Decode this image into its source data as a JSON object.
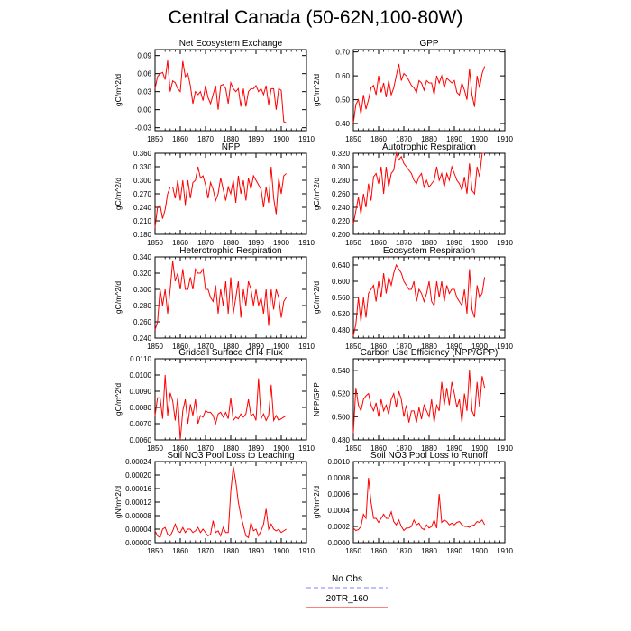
{
  "title": "Central Canada (50-62N,100-80W)",
  "x_ticks": [
    1850,
    1860,
    1870,
    1880,
    1890,
    1900,
    1910
  ],
  "x_range": [
    1850,
    1910
  ],
  "colors": {
    "model": "#ff0000",
    "obs": "#8080ff",
    "axis": "#000000"
  },
  "legend": [
    {
      "label": "No Obs",
      "style": "dashed",
      "color": "#8080ff"
    },
    {
      "label": "20TR_160",
      "style": "solid",
      "color": "#ff0000"
    }
  ],
  "chart_data": [
    {
      "type": "line",
      "title": "Net Ecosystem Exchange",
      "ylabel": "gC/m^2/d",
      "xlim": [
        1850,
        1910
      ],
      "ylim": [
        -0.035,
        0.1
      ],
      "yticks": [
        -0.03,
        0.0,
        0.03,
        0.06,
        0.09
      ],
      "ytick_labels": [
        "-0.03",
        "0.00",
        "0.03",
        "0.06",
        "0.09"
      ],
      "x_start": 1850,
      "series": [
        {
          "name": "20TR_160",
          "values": [
            0.035,
            0.055,
            0.06,
            0.062,
            0.05,
            0.082,
            0.03,
            0.048,
            0.045,
            0.035,
            0.03,
            0.081,
            0.055,
            0.06,
            0.04,
            0.01,
            0.03,
            0.025,
            0.03,
            0.015,
            0.04,
            0.02,
            0.01,
            0.025,
            0.04,
            0.0,
            0.04,
            0.042,
            0.035,
            0.01,
            0.045,
            0.035,
            0.03,
            0.035,
            0.005,
            0.035,
            0.005,
            0.03,
            0.035,
            0.035,
            0.04,
            0.03,
            0.035,
            0.025,
            0.04,
            0.008,
            0.035,
            0.035,
            0.0,
            0.035,
            0.032,
            -0.02,
            -0.022
          ]
        }
      ]
    },
    {
      "type": "line",
      "title": "GPP",
      "ylabel": "gC/m^2/d",
      "xlim": [
        1850,
        1910
      ],
      "ylim": [
        0.37,
        0.71
      ],
      "yticks": [
        0.4,
        0.5,
        0.6,
        0.7
      ],
      "ytick_labels": [
        "0.40",
        "0.50",
        "0.60",
        "0.70"
      ],
      "x_start": 1850,
      "series": [
        {
          "name": "20TR_160",
          "values": [
            0.4,
            0.48,
            0.5,
            0.44,
            0.52,
            0.46,
            0.5,
            0.55,
            0.56,
            0.52,
            0.6,
            0.53,
            0.57,
            0.51,
            0.58,
            0.52,
            0.55,
            0.6,
            0.65,
            0.58,
            0.61,
            0.6,
            0.58,
            0.56,
            0.55,
            0.53,
            0.58,
            0.57,
            0.54,
            0.58,
            0.57,
            0.57,
            0.52,
            0.6,
            0.57,
            0.6,
            0.55,
            0.59,
            0.58,
            0.57,
            0.58,
            0.53,
            0.52,
            0.57,
            0.54,
            0.5,
            0.63,
            0.52,
            0.47,
            0.6,
            0.55,
            0.61,
            0.64
          ]
        }
      ]
    },
    {
      "type": "line",
      "title": "NPP",
      "ylabel": "gC/m^2/d",
      "xlim": [
        1850,
        1910
      ],
      "ylim": [
        0.18,
        0.36
      ],
      "yticks": [
        0.18,
        0.21,
        0.24,
        0.27,
        0.3,
        0.33,
        0.36
      ],
      "ytick_labels": [
        "0.180",
        "0.210",
        "0.240",
        "0.270",
        "0.300",
        "0.330",
        "0.360"
      ],
      "x_start": 1850,
      "series": [
        {
          "name": "20TR_160",
          "values": [
            0.195,
            0.24,
            0.245,
            0.215,
            0.235,
            0.27,
            0.285,
            0.285,
            0.26,
            0.3,
            0.255,
            0.3,
            0.245,
            0.3,
            0.26,
            0.295,
            0.3,
            0.33,
            0.305,
            0.31,
            0.29,
            0.26,
            0.295,
            0.28,
            0.255,
            0.27,
            0.305,
            0.28,
            0.255,
            0.285,
            0.27,
            0.3,
            0.25,
            0.31,
            0.27,
            0.3,
            0.255,
            0.305,
            0.28,
            0.31,
            0.3,
            0.29,
            0.28,
            0.24,
            0.285,
            0.25,
            0.33,
            0.26,
            0.225,
            0.305,
            0.27,
            0.31,
            0.315
          ]
        }
      ]
    },
    {
      "type": "line",
      "title": "Autotrophic Respiration",
      "ylabel": "gC/m^2/d",
      "xlim": [
        1850,
        1910
      ],
      "ylim": [
        0.2,
        0.32
      ],
      "yticks": [
        0.2,
        0.22,
        0.24,
        0.26,
        0.28,
        0.3,
        0.32
      ],
      "ytick_labels": [
        "0.200",
        "0.220",
        "0.240",
        "0.260",
        "0.280",
        "0.300",
        "0.320"
      ],
      "x_start": 1850,
      "series": [
        {
          "name": "20TR_160",
          "values": [
            0.215,
            0.235,
            0.255,
            0.23,
            0.26,
            0.24,
            0.275,
            0.25,
            0.285,
            0.29,
            0.275,
            0.3,
            0.26,
            0.3,
            0.27,
            0.29,
            0.295,
            0.32,
            0.31,
            0.315,
            0.305,
            0.3,
            0.295,
            0.29,
            0.28,
            0.275,
            0.285,
            0.29,
            0.27,
            0.28,
            0.27,
            0.275,
            0.28,
            0.3,
            0.28,
            0.29,
            0.27,
            0.29,
            0.28,
            0.3,
            0.29,
            0.28,
            0.275,
            0.265,
            0.285,
            0.26,
            0.305,
            0.265,
            0.26,
            0.3,
            0.285,
            0.32,
            0.32
          ]
        }
      ]
    },
    {
      "type": "line",
      "title": "Heterotrophic Respiration",
      "ylabel": "gC/m^2/d",
      "xlim": [
        1850,
        1910
      ],
      "ylim": [
        0.24,
        0.34
      ],
      "yticks": [
        0.24,
        0.26,
        0.28,
        0.3,
        0.32,
        0.34
      ],
      "ytick_labels": [
        "0.240",
        "0.260",
        "0.280",
        "0.300",
        "0.320",
        "0.340"
      ],
      "x_start": 1850,
      "series": [
        {
          "name": "20TR_160",
          "values": [
            0.25,
            0.26,
            0.3,
            0.28,
            0.3,
            0.27,
            0.3,
            0.335,
            0.31,
            0.32,
            0.3,
            0.325,
            0.3,
            0.3,
            0.315,
            0.3,
            0.325,
            0.32,
            0.32,
            0.325,
            0.3,
            0.3,
            0.29,
            0.285,
            0.305,
            0.27,
            0.3,
            0.28,
            0.31,
            0.27,
            0.315,
            0.27,
            0.29,
            0.31,
            0.265,
            0.3,
            0.28,
            0.31,
            0.3,
            0.28,
            0.3,
            0.28,
            0.29,
            0.27,
            0.3,
            0.255,
            0.3,
            0.275,
            0.3,
            0.29,
            0.265,
            0.285,
            0.29
          ]
        }
      ]
    },
    {
      "type": "line",
      "title": "Ecosystem Respiration",
      "ylabel": "gC/m^2/d",
      "xlim": [
        1850,
        1910
      ],
      "ylim": [
        0.46,
        0.66
      ],
      "yticks": [
        0.48,
        0.52,
        0.56,
        0.6,
        0.64
      ],
      "ytick_labels": [
        "0.480",
        "0.520",
        "0.560",
        "0.600",
        "0.640"
      ],
      "x_start": 1850,
      "series": [
        {
          "name": "20TR_160",
          "values": [
            0.465,
            0.495,
            0.56,
            0.5,
            0.56,
            0.51,
            0.57,
            0.58,
            0.59,
            0.55,
            0.6,
            0.56,
            0.62,
            0.57,
            0.61,
            0.59,
            0.62,
            0.64,
            0.63,
            0.62,
            0.6,
            0.59,
            0.58,
            0.58,
            0.6,
            0.55,
            0.58,
            0.57,
            0.55,
            0.57,
            0.6,
            0.55,
            0.54,
            0.6,
            0.56,
            0.6,
            0.55,
            0.59,
            0.57,
            0.58,
            0.58,
            0.56,
            0.55,
            0.54,
            0.58,
            0.52,
            0.63,
            0.53,
            0.51,
            0.59,
            0.56,
            0.57,
            0.61
          ]
        }
      ]
    },
    {
      "type": "line",
      "title": "Gridcell Surface CH4 Flux",
      "ylabel": "gC/m^2/d",
      "xlim": [
        1850,
        1910
      ],
      "ylim": [
        0.006,
        0.011
      ],
      "yticks": [
        0.006,
        0.007,
        0.008,
        0.009,
        0.01,
        0.011
      ],
      "ytick_labels": [
        "0.0060",
        "0.0070",
        "0.0080",
        "0.0090",
        "0.0100",
        "0.0110"
      ],
      "x_start": 1850,
      "series": [
        {
          "name": "20TR_160",
          "values": [
            0.0075,
            0.0086,
            0.0086,
            0.0073,
            0.01,
            0.0075,
            0.0089,
            0.0084,
            0.0072,
            0.0086,
            0.006,
            0.0078,
            0.0085,
            0.007,
            0.0082,
            0.0075,
            0.0085,
            0.007,
            0.0075,
            0.0074,
            0.0078,
            0.0077,
            0.0077,
            0.0075,
            0.007,
            0.0076,
            0.0077,
            0.0074,
            0.0077,
            0.0073,
            0.0086,
            0.0072,
            0.0074,
            0.0073,
            0.0076,
            0.0074,
            0.0076,
            0.0085,
            0.0075,
            0.0076,
            0.0072,
            0.0098,
            0.0073,
            0.0076,
            0.0072,
            0.0075,
            0.0094,
            0.0072,
            0.0075,
            0.0072,
            0.0073,
            0.0074,
            0.0075
          ]
        }
      ]
    },
    {
      "type": "line",
      "title": "Carbon Use Efficiency (NPP/GPP)",
      "ylabel": "NPP/GPP",
      "xlim": [
        1850,
        1910
      ],
      "ylim": [
        0.48,
        0.55
      ],
      "yticks": [
        0.48,
        0.5,
        0.52,
        0.54
      ],
      "ytick_labels": [
        "0.480",
        "0.500",
        "0.520",
        "0.540"
      ],
      "x_start": 1850,
      "series": [
        {
          "name": "20TR_160",
          "values": [
            0.486,
            0.525,
            0.51,
            0.505,
            0.515,
            0.518,
            0.52,
            0.51,
            0.505,
            0.512,
            0.5,
            0.515,
            0.505,
            0.51,
            0.502,
            0.515,
            0.52,
            0.508,
            0.522,
            0.515,
            0.5,
            0.51,
            0.495,
            0.505,
            0.505,
            0.495,
            0.508,
            0.498,
            0.51,
            0.505,
            0.5,
            0.515,
            0.495,
            0.51,
            0.505,
            0.53,
            0.51,
            0.525,
            0.51,
            0.53,
            0.52,
            0.508,
            0.515,
            0.495,
            0.52,
            0.505,
            0.54,
            0.505,
            0.5,
            0.53,
            0.508,
            0.535,
            0.525
          ]
        }
      ]
    },
    {
      "type": "line",
      "title": "Soil NO3 Pool Loss to Leaching",
      "ylabel": "gN/m^2/d",
      "xlim": [
        1850,
        1910
      ],
      "ylim": [
        0.0,
        0.00024
      ],
      "yticks": [
        0.0,
        4e-05,
        8e-05,
        0.00012,
        0.00016,
        0.0002,
        0.00024
      ],
      "ytick_labels": [
        "0.00000",
        "0.00004",
        "0.00008",
        "0.00012",
        "0.00016",
        "0.00020",
        "0.00024"
      ],
      "x_start": 1850,
      "series": [
        {
          "name": "20TR_160",
          "values": [
            3.5e-05,
            2e-05,
            1.5e-05,
            4e-05,
            4.5e-05,
            2.5e-05,
            2e-05,
            3.5e-05,
            5.5e-05,
            3.5e-05,
            3e-05,
            4.5e-05,
            3e-05,
            4e-05,
            4e-05,
            3e-05,
            3.5e-05,
            4.5e-05,
            3e-05,
            4e-05,
            3e-05,
            2e-05,
            2.5e-05,
            6.5e-05,
            3e-05,
            3.5e-05,
            2e-05,
            4.5e-05,
            3e-05,
            3e-05,
            0.00015,
            0.000225,
            0.00018,
            0.00012,
            8e-05,
            5e-05,
            2e-05,
            1.5e-05,
            6e-05,
            3.5e-05,
            4e-05,
            2e-05,
            3.5e-05,
            5.5e-05,
            0.0001,
            4e-05,
            5.5e-05,
            4e-05,
            3.5e-05,
            4e-05,
            3e-05,
            3.5e-05,
            4e-05
          ]
        }
      ]
    },
    {
      "type": "line",
      "title": "Soil NO3 Pool Loss to Runoff",
      "ylabel": "gN/m^2/d",
      "xlim": [
        1850,
        1910
      ],
      "ylim": [
        0.0,
        0.001
      ],
      "yticks": [
        0.0,
        0.0002,
        0.0004,
        0.0006,
        0.0008,
        0.001
      ],
      "ytick_labels": [
        "0.0000",
        "0.0002",
        "0.0004",
        "0.0006",
        "0.0008",
        "0.0010"
      ],
      "x_start": 1850,
      "series": [
        {
          "name": "20TR_160",
          "values": [
            0.00018,
            0.00015,
            0.00016,
            0.0002,
            0.00035,
            0.0003,
            0.0008,
            0.0005,
            0.0003,
            0.0003,
            0.00025,
            0.0003,
            0.00035,
            0.0003,
            0.0003,
            0.00038,
            0.00026,
            0.00022,
            0.00028,
            0.0002,
            0.00015,
            0.00018,
            0.00018,
            0.0002,
            0.00028,
            0.00022,
            0.00024,
            0.00018,
            0.00016,
            0.00022,
            0.00018,
            0.0002,
            0.00028,
            0.00018,
            0.0006,
            0.00025,
            0.00028,
            0.00026,
            0.00022,
            0.00024,
            0.00022,
            0.00025,
            0.00026,
            0.00022,
            0.0002,
            0.0002,
            0.00019,
            0.00021,
            0.00022,
            0.00026,
            0.00025,
            0.00028,
            0.00022
          ]
        }
      ]
    }
  ]
}
